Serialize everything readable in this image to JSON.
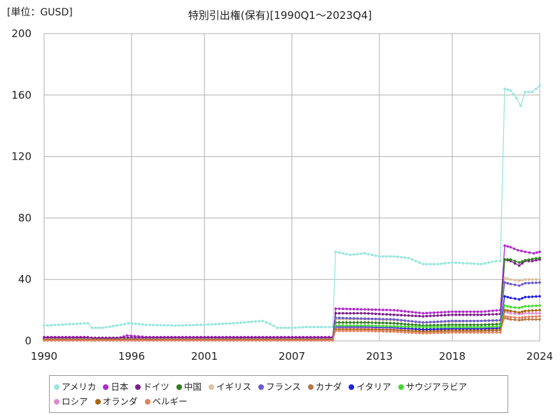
{
  "unit_label": "[単位：GUSD]",
  "title": "特別引出権(保有)[1990Q1～2023Q4]",
  "chart_data": {
    "type": "line",
    "title": "特別引出権(保有)[1990Q1～2023Q4]",
    "unit": "[単位：GUSD]",
    "xlim": [
      1990,
      2024
    ],
    "ylim": [
      0,
      200
    ],
    "x_ticks": [
      1990,
      1996,
      2001,
      2007,
      2013,
      2018,
      2024
    ],
    "y_ticks": [
      0,
      40,
      80,
      120,
      160,
      200
    ],
    "grid": true,
    "legend_position": "bottom",
    "series": [
      {
        "name": "アメリカ",
        "color": "#99e6dd",
        "points": [
          [
            1990,
            10
          ],
          [
            1991,
            10.5
          ],
          [
            1992,
            11
          ],
          [
            1993,
            11.5
          ],
          [
            1993.3,
            8.5
          ],
          [
            1994,
            8.5
          ],
          [
            1995,
            10
          ],
          [
            1995.8,
            11.5
          ],
          [
            1997,
            10.5
          ],
          [
            1999,
            10
          ],
          [
            2001,
            10.5
          ],
          [
            2003,
            11.5
          ],
          [
            2005,
            13
          ],
          [
            2005.5,
            11
          ],
          [
            2006,
            8.5
          ],
          [
            2007,
            8.5
          ],
          [
            2008,
            9
          ],
          [
            2009.8,
            9
          ],
          [
            2010,
            58
          ],
          [
            2011,
            56
          ],
          [
            2012,
            57
          ],
          [
            2013,
            55
          ],
          [
            2014,
            55
          ],
          [
            2015,
            54
          ],
          [
            2016,
            50
          ],
          [
            2017,
            50
          ],
          [
            2018,
            51
          ],
          [
            2019,
            50.5
          ],
          [
            2020,
            50
          ],
          [
            2021,
            52
          ],
          [
            2021.3,
            52
          ],
          [
            2021.6,
            164
          ],
          [
            2022,
            163
          ],
          [
            2022.4,
            158
          ],
          [
            2022.7,
            153
          ],
          [
            2023,
            162
          ],
          [
            2023.5,
            162
          ],
          [
            2024,
            166
          ]
        ]
      },
      {
        "name": "日本",
        "color": "#b02ac8",
        "points": [
          [
            1990,
            2.5
          ],
          [
            1993,
            2.5
          ],
          [
            1993.3,
            1.5
          ],
          [
            1995,
            1.5
          ],
          [
            1995.7,
            3.5
          ],
          [
            1997,
            2.5
          ],
          [
            2000,
            2.5
          ],
          [
            2005,
            2.5
          ],
          [
            2009.8,
            2.5
          ],
          [
            2010,
            21
          ],
          [
            2012,
            20.5
          ],
          [
            2014,
            20
          ],
          [
            2016,
            18
          ],
          [
            2018,
            19
          ],
          [
            2020,
            19
          ],
          [
            2021.3,
            20
          ],
          [
            2021.6,
            62
          ],
          [
            2022,
            61
          ],
          [
            2022.5,
            59
          ],
          [
            2023,
            58
          ],
          [
            2023.6,
            57
          ],
          [
            2024,
            58
          ]
        ]
      },
      {
        "name": "ドイツ",
        "color": "#7a1e8c",
        "points": [
          [
            1990,
            2
          ],
          [
            1995,
            2
          ],
          [
            2000,
            2
          ],
          [
            2005,
            2
          ],
          [
            2009.8,
            2
          ],
          [
            2010,
            18
          ],
          [
            2012,
            18
          ],
          [
            2014,
            17
          ],
          [
            2016,
            16
          ],
          [
            2018,
            17
          ],
          [
            2020,
            17
          ],
          [
            2021.3,
            17.5
          ],
          [
            2021.6,
            53
          ],
          [
            2022,
            52
          ],
          [
            2022.6,
            49
          ],
          [
            2023,
            52
          ],
          [
            2023.5,
            52
          ],
          [
            2024,
            53
          ]
        ]
      },
      {
        "name": "中国",
        "color": "#2e7d1e",
        "points": [
          [
            1990,
            1
          ],
          [
            2000,
            1
          ],
          [
            2005,
            1
          ],
          [
            2009.8,
            1
          ],
          [
            2010,
            12
          ],
          [
            2012,
            12
          ],
          [
            2014,
            11.5
          ],
          [
            2016,
            10
          ],
          [
            2018,
            10.5
          ],
          [
            2020,
            10.5
          ],
          [
            2021.3,
            11
          ],
          [
            2021.6,
            53
          ],
          [
            2022,
            53
          ],
          [
            2022.6,
            51
          ],
          [
            2023,
            52.5
          ],
          [
            2024,
            54
          ]
        ]
      },
      {
        "name": "イギリス",
        "color": "#d8c4a0",
        "points": [
          [
            1990,
            1
          ],
          [
            2000,
            1
          ],
          [
            2009.8,
            1
          ],
          [
            2010,
            14
          ],
          [
            2012,
            14
          ],
          [
            2014,
            13.5
          ],
          [
            2016,
            12
          ],
          [
            2018,
            12.5
          ],
          [
            2020,
            13
          ],
          [
            2021.3,
            13
          ],
          [
            2021.6,
            41
          ],
          [
            2022,
            40
          ],
          [
            2022.6,
            39
          ],
          [
            2023,
            40
          ],
          [
            2024,
            40
          ]
        ]
      },
      {
        "name": "フランス",
        "color": "#6a5acd",
        "points": [
          [
            1990,
            1
          ],
          [
            2000,
            1
          ],
          [
            2009.8,
            1
          ],
          [
            2010,
            15
          ],
          [
            2012,
            14.5
          ],
          [
            2014,
            14
          ],
          [
            2016,
            12
          ],
          [
            2018,
            13
          ],
          [
            2020,
            13
          ],
          [
            2021.3,
            13.5
          ],
          [
            2021.6,
            38
          ],
          [
            2022,
            37
          ],
          [
            2022.6,
            36
          ],
          [
            2023,
            37.5
          ],
          [
            2024,
            38
          ]
        ]
      },
      {
        "name": "カナダ",
        "color": "#b8764a",
        "points": [
          [
            1990,
            0.8
          ],
          [
            2000,
            0.8
          ],
          [
            2009.8,
            0.8
          ],
          [
            2010,
            9
          ],
          [
            2012,
            9
          ],
          [
            2014,
            8.5
          ],
          [
            2016,
            7
          ],
          [
            2018,
            7.5
          ],
          [
            2020,
            7.5
          ],
          [
            2021.3,
            8
          ],
          [
            2021.6,
            15
          ],
          [
            2022,
            14
          ],
          [
            2022.6,
            13.5
          ],
          [
            2023,
            14
          ],
          [
            2024,
            14
          ]
        ]
      },
      {
        "name": "イタリア",
        "color": "#2020e0",
        "points": [
          [
            1990,
            0.5
          ],
          [
            2000,
            0.5
          ],
          [
            2009.8,
            0.5
          ],
          [
            2010,
            9
          ],
          [
            2012,
            9
          ],
          [
            2014,
            8.5
          ],
          [
            2016,
            7.5
          ],
          [
            2018,
            8
          ],
          [
            2020,
            8
          ],
          [
            2021.3,
            8.5
          ],
          [
            2021.6,
            29
          ],
          [
            2022,
            28
          ],
          [
            2022.6,
            27
          ],
          [
            2023,
            28.5
          ],
          [
            2024,
            29
          ]
        ]
      },
      {
        "name": "サウジアラビア",
        "color": "#44d830",
        "points": [
          [
            1990,
            0.5
          ],
          [
            2000,
            0.5
          ],
          [
            2009.8,
            0.5
          ],
          [
            2010,
            10
          ],
          [
            2012,
            10
          ],
          [
            2014,
            9.5
          ],
          [
            2016,
            9
          ],
          [
            2018,
            9
          ],
          [
            2020,
            9
          ],
          [
            2021.3,
            9.5
          ],
          [
            2021.6,
            23
          ],
          [
            2022,
            22
          ],
          [
            2022.6,
            21.5
          ],
          [
            2023,
            22.5
          ],
          [
            2024,
            23
          ]
        ]
      },
      {
        "name": "ロシア",
        "color": "#e08ad0",
        "points": [
          [
            1990,
            0.3
          ],
          [
            2000,
            0.3
          ],
          [
            2009.8,
            0.3
          ],
          [
            2010,
            8
          ],
          [
            2012,
            8
          ],
          [
            2014,
            7.5
          ],
          [
            2016,
            6
          ],
          [
            2018,
            6.5
          ],
          [
            2020,
            6.5
          ],
          [
            2021.3,
            7
          ],
          [
            2021.6,
            19
          ],
          [
            2022,
            18
          ],
          [
            2022.6,
            17.5
          ],
          [
            2023,
            18
          ],
          [
            2024,
            18
          ]
        ]
      },
      {
        "name": "オランダ",
        "color": "#a86410",
        "points": [
          [
            1990,
            0.8
          ],
          [
            2000,
            0.8
          ],
          [
            2009.8,
            0.8
          ],
          [
            2010,
            7.5
          ],
          [
            2012,
            7.5
          ],
          [
            2014,
            7
          ],
          [
            2016,
            6
          ],
          [
            2018,
            6.5
          ],
          [
            2020,
            6.5
          ],
          [
            2021.3,
            7
          ],
          [
            2021.6,
            20
          ],
          [
            2022,
            19.5
          ],
          [
            2022.6,
            18.5
          ],
          [
            2023,
            19.5
          ],
          [
            2024,
            20
          ]
        ]
      },
      {
        "name": "ベルギー",
        "color": "#e2825c",
        "points": [
          [
            1990,
            0.3
          ],
          [
            2000,
            0.3
          ],
          [
            2009.8,
            0.3
          ],
          [
            2010,
            6.5
          ],
          [
            2012,
            6.5
          ],
          [
            2014,
            6
          ],
          [
            2016,
            5
          ],
          [
            2018,
            5.5
          ],
          [
            2020,
            5.5
          ],
          [
            2021.3,
            5.5
          ],
          [
            2021.6,
            16
          ],
          [
            2022,
            15.5
          ],
          [
            2022.6,
            15
          ],
          [
            2023,
            15.5
          ],
          [
            2024,
            16
          ]
        ]
      }
    ]
  }
}
